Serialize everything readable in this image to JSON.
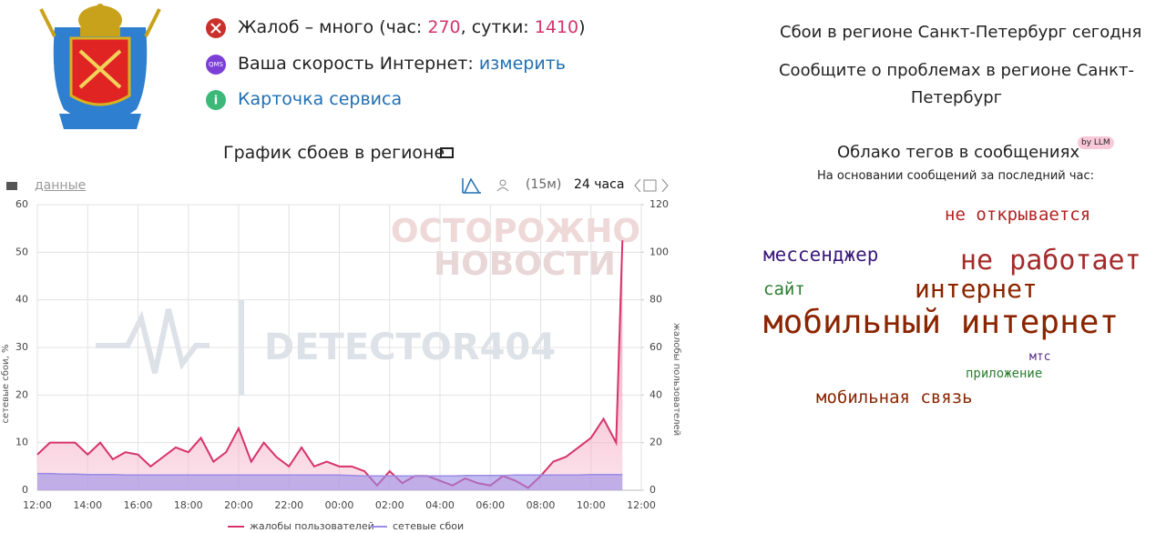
{
  "header": {
    "status_prefix": "Жалоб – много (час: ",
    "status_hour": 270,
    "status_mid": ", сутки: ",
    "status_day": 1410,
    "status_suffix": ")",
    "speed_label": "Ваша скорость Интернет: ",
    "speed_link": "измерить",
    "qms_icon": "QMS",
    "card_link": "Карточка сервиса"
  },
  "chart_panel": {
    "title": "График сбоев в регионе",
    "data_link": "данные",
    "range_short": "(15м)",
    "range_long": "24 часа"
  },
  "watermarks": [
    "ОСТОРОЖНО",
    "НОВОСТИ",
    "DETECTOR404"
  ],
  "chart_data": {
    "type": "line",
    "ylabel": "сетевые сбои, %",
    "y2label": "жалобы пользователей",
    "xlim": [
      0,
      24
    ],
    "xticks": [
      {
        "value": 0,
        "label": "12:00"
      },
      {
        "value": 2,
        "label": "14:00"
      },
      {
        "value": 4,
        "label": "16:00"
      },
      {
        "value": 6,
        "label": "18:00"
      },
      {
        "value": 8,
        "label": "20:00"
      },
      {
        "value": 10,
        "label": "22:00"
      },
      {
        "value": 12,
        "label": "00:00"
      },
      {
        "value": 14,
        "label": "02:00"
      },
      {
        "value": 16,
        "label": "04:00"
      },
      {
        "value": 18,
        "label": "06:00"
      },
      {
        "value": 20,
        "label": "08:00"
      },
      {
        "value": 22,
        "label": "10:00"
      },
      {
        "value": 24,
        "label": "12:00"
      }
    ],
    "ylim": [
      0,
      60
    ],
    "yticks": [
      0,
      10,
      20,
      30,
      40,
      50,
      60
    ],
    "y2lim": [
      0,
      120
    ],
    "y2ticks": [
      0,
      20,
      40,
      60,
      80,
      100,
      120
    ],
    "grid": true,
    "legend": "bottom",
    "x": [
      0,
      0.5,
      1,
      1.5,
      2,
      2.5,
      3,
      3.5,
      4,
      4.5,
      5,
      5.5,
      6,
      6.5,
      7,
      7.5,
      8,
      8.5,
      9,
      9.5,
      10,
      10.5,
      11,
      11.5,
      12,
      12.5,
      13,
      13.5,
      14,
      14.5,
      15,
      15.5,
      16,
      16.5,
      17,
      17.5,
      18,
      18.5,
      19,
      19.5,
      20,
      20.5,
      21,
      21.5,
      22,
      22.5,
      23,
      23.25
    ],
    "series": [
      {
        "name": "жалобы пользователей",
        "color": "#d6336c",
        "axis": "y2",
        "values": [
          15,
          20,
          20,
          20,
          15,
          20,
          13,
          16,
          15,
          10,
          14,
          18,
          16,
          22,
          12,
          16,
          26,
          12,
          20,
          14,
          10,
          18,
          10,
          12,
          10,
          10,
          8,
          2,
          8,
          3,
          6,
          6,
          4,
          2,
          5,
          3,
          2,
          6,
          4,
          1,
          6,
          12,
          14,
          18,
          22,
          30,
          20,
          105
        ]
      },
      {
        "name": "сетевые сбои",
        "color": "#9b8ce6",
        "axis": "y",
        "values": [
          3.5,
          3.5,
          3.4,
          3.4,
          3.3,
          3.3,
          3.3,
          3.2,
          3.2,
          3.2,
          3.2,
          3.2,
          3.2,
          3.2,
          3.2,
          3.2,
          3.2,
          3.2,
          3.2,
          3.2,
          3.2,
          3.2,
          3.2,
          3.2,
          3.2,
          3.1,
          3.0,
          3.0,
          3.0,
          3.0,
          3.0,
          3.0,
          3.0,
          3.0,
          3.1,
          3.1,
          3.1,
          3.1,
          3.2,
          3.2,
          3.2,
          3.2,
          3.2,
          3.2,
          3.3,
          3.3,
          3.3,
          3.3
        ]
      }
    ]
  },
  "sidebar": {
    "title": "Сбои в регионе Санкт-Петербург сегодня",
    "report": "Сообщите о проблемах в регионе Санкт-Петербург",
    "cloud_title": "Облако тегов в сообщениях",
    "badge": "by LLM",
    "cloud_subtitle": "На основании сообщений за последний час:",
    "tags": [
      "не открывается",
      "мессенджер",
      "не работает",
      "сайт",
      "интернет",
      "мобильный интернет",
      "мтс",
      "приложение",
      "мобильная связь"
    ]
  }
}
